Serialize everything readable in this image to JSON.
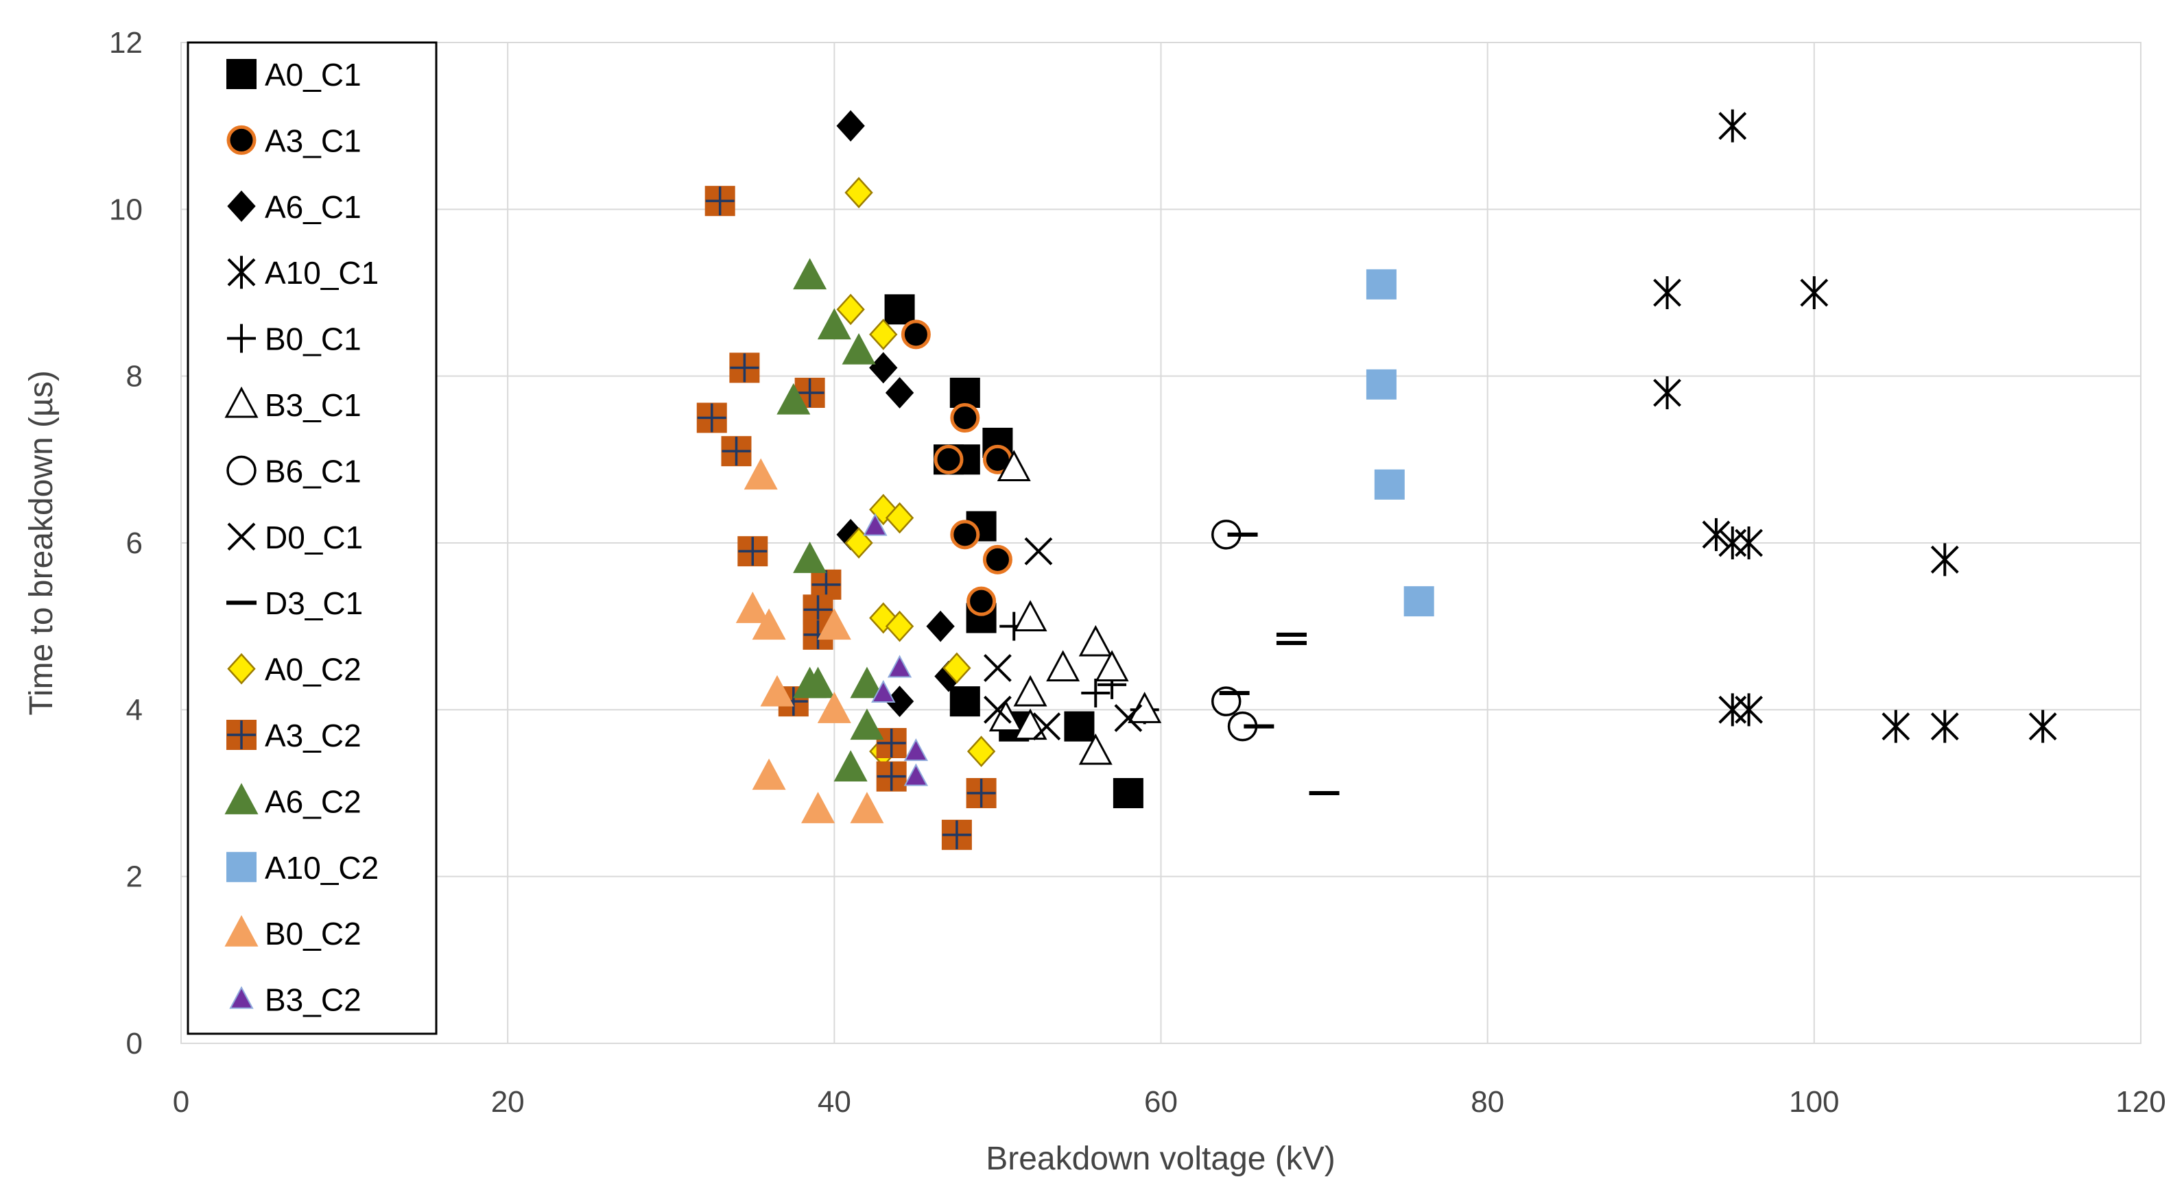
{
  "chart_data": {
    "type": "scatter",
    "title": "",
    "xlabel": "Breakdown voltage (kV)",
    "ylabel": "Time to breakdown (µs)",
    "xlim": [
      0,
      120
    ],
    "ylim": [
      0,
      12
    ],
    "x_ticks": [
      "0",
      "20",
      "40",
      "60",
      "80",
      "100",
      "120"
    ],
    "y_ticks": [
      "0",
      "2",
      "4",
      "6",
      "8",
      "10",
      "12"
    ],
    "grid": true,
    "legend_position": "top-left",
    "series": [
      {
        "name": "A0_C1",
        "marker": "square",
        "fill": "#000000",
        "stroke": "#000000",
        "points": [
          [
            44,
            8.8
          ],
          [
            48,
            7.8
          ],
          [
            47,
            7.0
          ],
          [
            48,
            7.0
          ],
          [
            50,
            7.2
          ],
          [
            49,
            6.2
          ],
          [
            49,
            5.1
          ],
          [
            48,
            4.1
          ],
          [
            51,
            3.8
          ],
          [
            55,
            3.8
          ],
          [
            58,
            3.0
          ]
        ]
      },
      {
        "name": "A3_C1",
        "marker": "circle",
        "fill": "#000000",
        "stroke": "#E87722",
        "points": [
          [
            45,
            8.5
          ],
          [
            48,
            7.5
          ],
          [
            47,
            7.0
          ],
          [
            50,
            7.0
          ],
          [
            48,
            6.1
          ],
          [
            50,
            5.8
          ],
          [
            49,
            5.3
          ]
        ]
      },
      {
        "name": "A6_C1",
        "marker": "diamond",
        "fill": "#000000",
        "stroke": "#000000",
        "points": [
          [
            41,
            11.0
          ],
          [
            43,
            8.1
          ],
          [
            44,
            7.8
          ],
          [
            41,
            6.1
          ],
          [
            46.5,
            5.0
          ],
          [
            44,
            4.1
          ],
          [
            47,
            4.4
          ]
        ]
      },
      {
        "name": "A10_C1",
        "marker": "asterisk",
        "fill": "none",
        "stroke": "#000000",
        "points": [
          [
            95,
            11.0
          ],
          [
            91,
            9.0
          ],
          [
            100,
            9.0
          ],
          [
            91,
            7.8
          ],
          [
            94,
            6.1
          ],
          [
            95,
            6.0
          ],
          [
            96,
            6.0
          ],
          [
            108,
            5.8
          ],
          [
            95,
            4.0
          ],
          [
            96,
            4.0
          ],
          [
            105,
            3.8
          ],
          [
            108,
            3.8
          ],
          [
            114,
            3.8
          ]
        ]
      },
      {
        "name": "B0_C1",
        "marker": "plus",
        "fill": "none",
        "stroke": "#000000",
        "points": [
          [
            51,
            5.0
          ],
          [
            56,
            4.2
          ],
          [
            57,
            4.3
          ],
          [
            59,
            4.0
          ]
        ]
      },
      {
        "name": "B3_C1",
        "marker": "triangle",
        "fill": "#ffffff",
        "stroke": "#000000",
        "points": [
          [
            51,
            6.9
          ],
          [
            52,
            5.1
          ],
          [
            56,
            4.8
          ],
          [
            54,
            4.5
          ],
          [
            57,
            4.5
          ],
          [
            52,
            4.2
          ],
          [
            50.5,
            3.9
          ],
          [
            52,
            3.8
          ],
          [
            56,
            3.5
          ],
          [
            59,
            4.0
          ]
        ]
      },
      {
        "name": "B6_C1",
        "marker": "circle-open",
        "fill": "#ffffff",
        "stroke": "#000000",
        "points": [
          [
            64,
            6.1
          ],
          [
            64,
            4.1
          ],
          [
            65,
            3.8
          ]
        ]
      },
      {
        "name": "D0_C1",
        "marker": "x",
        "fill": "none",
        "stroke": "#000000",
        "points": [
          [
            52.5,
            5.9
          ],
          [
            50,
            4.5
          ],
          [
            50,
            4.0
          ],
          [
            53,
            3.8
          ],
          [
            58,
            3.9
          ]
        ]
      },
      {
        "name": "D3_C1",
        "marker": "dash",
        "fill": "none",
        "stroke": "#000000",
        "points": [
          [
            65,
            6.1
          ],
          [
            64.5,
            4.2
          ],
          [
            66,
            3.8
          ],
          [
            68,
            4.9
          ],
          [
            68,
            4.8
          ],
          [
            70,
            3.0
          ]
        ]
      },
      {
        "name": "A0_C2",
        "marker": "diamond",
        "fill": "#FFEB00",
        "stroke": "#9C7D00",
        "points": [
          [
            41.5,
            10.2
          ],
          [
            41,
            8.8
          ],
          [
            43,
            8.5
          ],
          [
            43,
            6.4
          ],
          [
            44,
            6.3
          ],
          [
            41.5,
            6.0
          ],
          [
            43,
            5.1
          ],
          [
            44,
            5.0
          ],
          [
            47.5,
            4.5
          ],
          [
            43,
            3.5
          ],
          [
            49,
            3.5
          ]
        ]
      },
      {
        "name": "A3_C2",
        "marker": "square-plus",
        "fill": "#C55A11",
        "stroke": "#C55A11",
        "points": [
          [
            33,
            10.1
          ],
          [
            34.5,
            8.1
          ],
          [
            38.5,
            7.8
          ],
          [
            32.5,
            7.5
          ],
          [
            34,
            7.1
          ],
          [
            35,
            5.9
          ],
          [
            39.5,
            5.5
          ],
          [
            39,
            5.2
          ],
          [
            39,
            4.9
          ],
          [
            37.5,
            4.1
          ],
          [
            43.5,
            3.6
          ],
          [
            43.5,
            3.2
          ],
          [
            49,
            3.0
          ],
          [
            47.5,
            2.5
          ]
        ]
      },
      {
        "name": "A6_C2",
        "marker": "triangle",
        "fill": "#548235",
        "stroke": "#548235",
        "points": [
          [
            38.5,
            9.2
          ],
          [
            40,
            8.6
          ],
          [
            41.5,
            8.3
          ],
          [
            37.5,
            7.7
          ],
          [
            38.5,
            5.8
          ],
          [
            38.5,
            4.3
          ],
          [
            39,
            4.3
          ],
          [
            42,
            4.3
          ],
          [
            42,
            3.8
          ],
          [
            41,
            3.3
          ]
        ]
      },
      {
        "name": "A10_C2",
        "marker": "square",
        "fill": "#7EAEDD",
        "stroke": "#7EAEDD",
        "points": [
          [
            73.5,
            9.1
          ],
          [
            73.5,
            7.9
          ],
          [
            74,
            6.7
          ],
          [
            75.8,
            5.3
          ]
        ]
      },
      {
        "name": "B0_C2",
        "marker": "triangle",
        "fill": "#F4A15F",
        "stroke": "#F4A15F",
        "points": [
          [
            35.5,
            6.8
          ],
          [
            35,
            5.2
          ],
          [
            36,
            5.0
          ],
          [
            40,
            5.0
          ],
          [
            36.5,
            4.2
          ],
          [
            40,
            4.0
          ],
          [
            36,
            3.2
          ],
          [
            39,
            2.8
          ],
          [
            42,
            2.8
          ]
        ]
      },
      {
        "name": "B3_C2",
        "marker": "triangle-small",
        "fill": "#7030A0",
        "stroke": "#7030A0",
        "points": [
          [
            42.5,
            6.2
          ],
          [
            44,
            4.5
          ],
          [
            43,
            4.2
          ],
          [
            45,
            3.5
          ],
          [
            45,
            3.2
          ]
        ]
      }
    ]
  }
}
